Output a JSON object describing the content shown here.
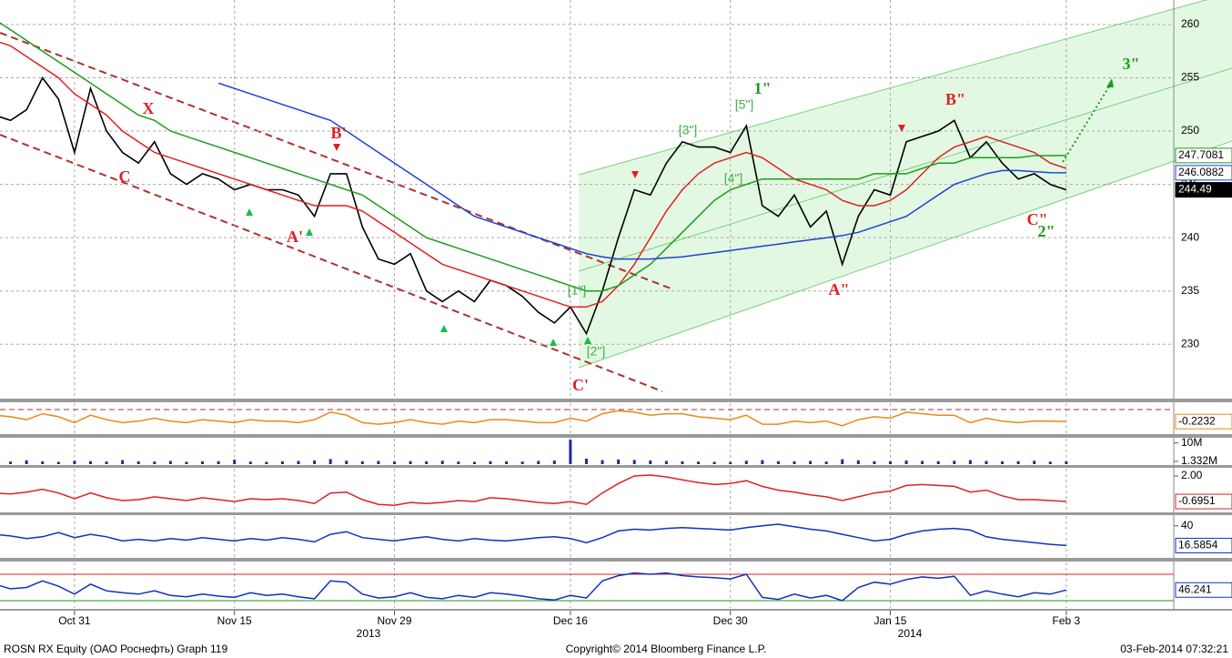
{
  "chart_data": [
    {
      "type": "line",
      "categories": [
        null,
        null,
        null,
        null,
        null,
        "Oct 31",
        null,
        null,
        null,
        null,
        null,
        null,
        null,
        null,
        null,
        "Nov 15",
        null,
        null,
        null,
        null,
        null,
        null,
        null,
        null,
        null,
        "Nov 29",
        null,
        null,
        null,
        null,
        null,
        null,
        null,
        null,
        null,
        null,
        "Dec 16",
        null,
        null,
        null,
        null,
        null,
        null,
        null,
        null,
        null,
        "Dec 30",
        null,
        null,
        null,
        null,
        null,
        null,
        null,
        null,
        null,
        "Jan 15",
        null,
        null,
        null,
        null,
        null,
        null,
        null,
        null,
        null,
        null,
        "Feb 3"
      ],
      "year_labels": [
        "2013",
        "2014"
      ],
      "ylim": [
        224.9,
        262.3
      ],
      "yticks": [
        230,
        235,
        240,
        245,
        250,
        255,
        260
      ],
      "grid": true,
      "series": [
        {
          "color": "#000000",
          "tag": true,
          "values": [
            251.5,
            251,
            252,
            255,
            253,
            248,
            254,
            250,
            248,
            247,
            249,
            246,
            245,
            246,
            245.5,
            244.5,
            245,
            244.5,
            244.5,
            244,
            242,
            246,
            246,
            241,
            238,
            237.5,
            238.5,
            235,
            234,
            235,
            234,
            236,
            235.5,
            234.5,
            233,
            232,
            233.5,
            231,
            235,
            240,
            244.5,
            244,
            247,
            249,
            248.5,
            248.5,
            248,
            250.5,
            243,
            242,
            244,
            241,
            242.5,
            237.5,
            242,
            244.5,
            244,
            249,
            249.5,
            250,
            251,
            247.5,
            249,
            247,
            245.5,
            246,
            245,
            244.49
          ]
        },
        {
          "color": "#e02020",
          "tag": false,
          "values": [
            258.5,
            258,
            257,
            256,
            255,
            253.5,
            252.5,
            251.5,
            250,
            249,
            248,
            247.5,
            247,
            246.5,
            246,
            245.5,
            245,
            244.5,
            244,
            243.5,
            243,
            243,
            243,
            242.5,
            241.5,
            240.5,
            239.5,
            238.5,
            237.5,
            237,
            236.5,
            236,
            235.5,
            235,
            234.5,
            234,
            233.5,
            233.5,
            234,
            235.5,
            237.5,
            240,
            242.5,
            244.5,
            246,
            247,
            247.5,
            248,
            247.5,
            246.5,
            245.5,
            245,
            244.5,
            243.5,
            243,
            243,
            243.5,
            244.5,
            246,
            247.5,
            248.5,
            249,
            249.5,
            249,
            248.5,
            248,
            247,
            246.5
          ]
        },
        {
          "color": "#1a9e1a",
          "tag": true,
          "values": [
            260.5,
            259.5,
            258.5,
            257.5,
            256.5,
            255.5,
            254.5,
            253.5,
            252.5,
            251.5,
            251,
            250,
            249.5,
            249,
            248.5,
            248,
            247.5,
            247,
            246.5,
            246,
            245.5,
            245,
            244.5,
            244,
            243,
            242,
            241,
            240,
            239.5,
            239,
            238.5,
            238,
            237.5,
            237,
            236.5,
            236,
            235.5,
            235,
            235,
            235.5,
            236.5,
            237.5,
            239,
            240.5,
            242,
            243.5,
            244.5,
            245,
            245.5,
            245.5,
            245.5,
            245.5,
            245.5,
            245.5,
            245.5,
            246,
            246,
            246,
            246.5,
            247,
            247,
            247.5,
            247.5,
            247.5,
            247.5,
            247.7,
            247.7,
            247.7081
          ]
        },
        {
          "color": "#2040d0",
          "tag": true,
          "values": [
            null,
            null,
            null,
            null,
            null,
            null,
            null,
            null,
            null,
            null,
            null,
            null,
            null,
            null,
            254.5,
            254,
            253.5,
            253,
            252.5,
            252,
            251.5,
            251,
            250,
            249,
            248,
            247,
            246,
            245,
            244,
            243,
            242,
            241.5,
            241,
            240.5,
            240,
            239.5,
            239,
            238.5,
            238.2,
            238,
            238,
            238,
            238.1,
            238.2,
            238.4,
            238.6,
            238.8,
            239,
            239.2,
            239.4,
            239.6,
            239.8,
            240,
            240.2,
            240.5,
            241,
            241.5,
            242,
            243,
            244,
            245,
            245.5,
            246,
            246.3,
            246.3,
            246.2,
            246.1,
            246.0882
          ]
        }
      ],
      "annotations": [
        "X",
        "C",
        "B'",
        "A'",
        "C'",
        "[1\"]",
        "[2\"]",
        "[3\"]",
        "[4\"]",
        "[5\"]",
        "1\"",
        "A\"",
        "B\"",
        "C\"",
        "2\"",
        "3\""
      ]
    },
    {
      "type": "line",
      "ylim": [
        -1,
        1
      ],
      "yticks": [],
      "series": [
        {
          "color": "#e88a1a",
          "tag": true,
          "values": [
            0.2,
            0.1,
            -0.1,
            0.3,
            0.1,
            -0.3,
            0.2,
            -0.1,
            -0.3,
            -0.2,
            0,
            -0.2,
            -0.3,
            -0.1,
            -0.2,
            -0.3,
            -0.1,
            -0.2,
            -0.2,
            -0.3,
            -0.1,
            0.4,
            0.2,
            -0.3,
            -0.4,
            -0.3,
            -0.1,
            -0.3,
            -0.4,
            -0.2,
            -0.3,
            -0.1,
            -0.1,
            -0.2,
            -0.3,
            -0.3,
            0,
            -0.2,
            0.3,
            0.5,
            0.4,
            0.2,
            0.3,
            0.3,
            0.1,
            0,
            -0.1,
            0.2,
            -0.4,
            -0.4,
            -0.2,
            -0.3,
            -0.2,
            -0.5,
            -0.1,
            0.1,
            0,
            0.4,
            0.3,
            0.2,
            0.2,
            -0.3,
            0,
            -0.2,
            -0.3,
            -0.2,
            -0.2,
            -0.2232
          ]
        }
      ]
    },
    {
      "type": "bar",
      "ylim": [
        0,
        12000000
      ],
      "yticks": [
        {
          "value": 10000000,
          "label": "10M"
        },
        {
          "value": 1332000,
          "label": "1.332M"
        }
      ],
      "series": [
        {
          "color": "#1a2a9e",
          "tag": false,
          "values": [
            1500000,
            1200000,
            1800000,
            1300000,
            1100000,
            1600000,
            1400000,
            1200000,
            1900000,
            1300000,
            1200000,
            1500000,
            1100000,
            1300000,
            1400000,
            2100000,
            1200000,
            1100000,
            1300000,
            1500000,
            1700000,
            2400000,
            1600000,
            1300000,
            1500000,
            1200000,
            1400000,
            1300000,
            1600000,
            1200000,
            1100000,
            1400000,
            1300000,
            1200000,
            1500000,
            1700000,
            11500000,
            2600000,
            1900000,
            2200000,
            2000000,
            1700000,
            1500000,
            1300000,
            1200000,
            1100000,
            1000000,
            1600000,
            1900000,
            1400000,
            1300000,
            1500000,
            1200000,
            2300000,
            1800000,
            1400000,
            1300000,
            1700000,
            1500000,
            1400000,
            1600000,
            1900000,
            1500000,
            1300000,
            1400000,
            1600000,
            1200000,
            1332000
          ]
        }
      ]
    },
    {
      "type": "line",
      "ylim": [
        -1.75,
        2.77
      ],
      "yticks": [
        {
          "value": 2,
          "label": "2.00"
        }
      ],
      "series": [
        {
          "color": "#e02020",
          "tag": true,
          "values": [
            0.2,
            0.1,
            0.3,
            0.6,
            0.2,
            -0.4,
            0.2,
            -0.3,
            -0.6,
            -0.5,
            -0.2,
            -0.4,
            -0.6,
            -0.3,
            -0.5,
            -0.7,
            -0.4,
            -0.5,
            -0.4,
            -0.6,
            -0.9,
            0.2,
            0.3,
            -0.5,
            -1.0,
            -1.1,
            -0.8,
            -0.9,
            -0.8,
            -0.6,
            -0.7,
            -0.3,
            -0.4,
            -0.6,
            -0.8,
            -0.9,
            -0.7,
            -1.0,
            0.2,
            1.2,
            2.0,
            2.1,
            1.9,
            1.6,
            1.3,
            1.1,
            1.2,
            1.5,
            0.9,
            0.5,
            0.3,
            0,
            -0.2,
            -0.6,
            -0.2,
            0.2,
            0.4,
            1.0,
            1.1,
            1.0,
            0.9,
            0.3,
            0.5,
            -0.1,
            -0.5,
            -0.5,
            -0.6,
            -0.6951
          ]
        }
      ]
    },
    {
      "type": "line",
      "ylim": [
        3,
        51.7
      ],
      "yticks": [
        40
      ],
      "series": [
        {
          "color": "#1030c0",
          "tag": true,
          "values": [
            30,
            28,
            25,
            27,
            32,
            26,
            30,
            27,
            22,
            24,
            22,
            25,
            23,
            26,
            24,
            22,
            25,
            23,
            26,
            24,
            21,
            30,
            33,
            26,
            24,
            22,
            25,
            27,
            24,
            22,
            25,
            23,
            22,
            24,
            26,
            27,
            25,
            20,
            26,
            34,
            36,
            35,
            37,
            38,
            37,
            36,
            35,
            38,
            40,
            42,
            39,
            36,
            34,
            30,
            26,
            22,
            24,
            30,
            34,
            36,
            37,
            35,
            27,
            24,
            22,
            20,
            18,
            16.5854
          ]
        }
      ]
    },
    {
      "type": "line",
      "ylim": [
        19,
        88
      ],
      "yticks": [],
      "ref_lines": [
        {
          "value": 70,
          "color": "#e02020"
        },
        {
          "value": 30,
          "color": "#1a9e1a"
        }
      ],
      "series": [
        {
          "color": "#1030c0",
          "tag": true,
          "values": [
            55,
            48,
            50,
            60,
            52,
            40,
            55,
            45,
            42,
            40,
            45,
            38,
            36,
            40,
            37,
            35,
            42,
            38,
            40,
            36,
            33,
            60,
            58,
            40,
            34,
            36,
            42,
            35,
            33,
            38,
            35,
            42,
            40,
            37,
            33,
            31,
            38,
            34,
            60,
            68,
            72,
            70,
            72,
            68,
            66,
            65,
            63,
            70,
            35,
            32,
            40,
            34,
            38,
            30,
            50,
            58,
            55,
            62,
            66,
            64,
            67,
            38,
            45,
            40,
            36,
            42,
            40,
            46.241
          ]
        }
      ]
    }
  ],
  "footer": {
    "left": "ROSN RX Equity (ОАО Роснефть) Graph 119",
    "center": "Copyright© 2014 Bloomberg Finance L.P.",
    "right": "03-Feb-2014 07:32:21"
  }
}
